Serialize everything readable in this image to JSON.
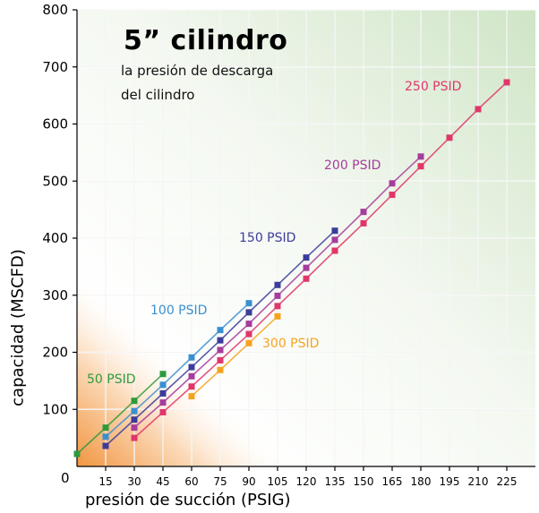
{
  "chart_data": {
    "type": "line",
    "title": "5” cilindro",
    "subtitle_lines": [
      "la presión de descarga",
      "del cilindro"
    ],
    "xlabel": "presión de succión (PSIG)",
    "ylabel": "capacidad (MSCFD)",
    "origin_label": "0",
    "xlim": [
      0,
      240
    ],
    "ylim": [
      0,
      800
    ],
    "x_ticks": [
      15,
      30,
      45,
      60,
      75,
      90,
      105,
      120,
      135,
      150,
      165,
      180,
      195,
      210,
      225
    ],
    "y_ticks": [
      100,
      200,
      300,
      400,
      500,
      600,
      700,
      800
    ],
    "grid": true,
    "series": [
      {
        "name": "50 PSID",
        "color": "#2e9a3e",
        "x": [
          0,
          15,
          30,
          45
        ],
        "y": [
          22,
          68,
          115,
          162
        ]
      },
      {
        "name": "100 PSID",
        "color": "#3a8fd0",
        "x": [
          15,
          30,
          45,
          60,
          75,
          90
        ],
        "y": [
          52,
          97,
          143,
          191,
          239,
          286
        ]
      },
      {
        "name": "150 PSID",
        "color": "#3c3c9a",
        "x": [
          15,
          30,
          45,
          60,
          75,
          90,
          105,
          120,
          135
        ],
        "y": [
          36,
          82,
          128,
          174,
          221,
          270,
          318,
          366,
          413
        ]
      },
      {
        "name": "200 PSID",
        "color": "#a63c9c",
        "x": [
          30,
          45,
          60,
          75,
          90,
          105,
          120,
          135,
          150,
          165,
          180
        ],
        "y": [
          68,
          112,
          158,
          204,
          250,
          299,
          348,
          397,
          446,
          496,
          543
        ]
      },
      {
        "name": "250 PSID",
        "color": "#e0366a",
        "x": [
          30,
          45,
          60,
          75,
          90,
          105,
          120,
          135,
          150,
          165,
          180,
          195,
          210,
          225
        ],
        "y": [
          50,
          95,
          140,
          186,
          232,
          281,
          329,
          378,
          426,
          476,
          526,
          576,
          626,
          673
        ]
      },
      {
        "name": "300 PSID",
        "color": "#f5a31f",
        "x": [
          60,
          75,
          90,
          105
        ],
        "y": [
          123,
          169,
          216,
          263
        ]
      }
    ],
    "colors": {
      "background_green": "#dcebd5",
      "background_orange": "#f08a2c"
    }
  }
}
